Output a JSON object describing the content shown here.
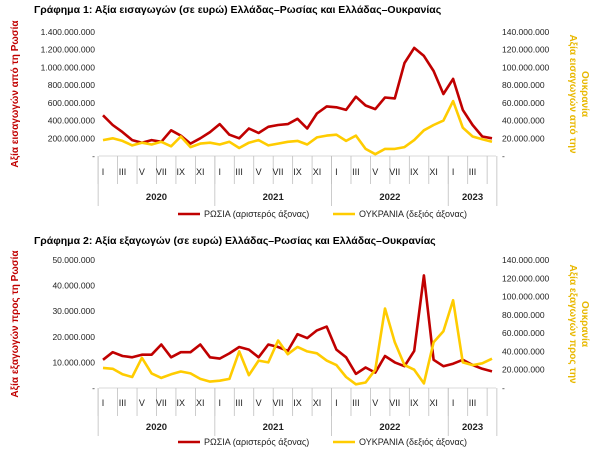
{
  "chart_data": [
    {
      "type": "line",
      "title": "Γράφημα 1: Αξία εισαγωγών (σε ευρώ) Ελλάδας–Ρωσίας και Ελλάδας–Ουκρανίας",
      "ylabel": "Αξία εισαγωγών από τη Ρωσία",
      "y2label": "Αξία εισαγωγών από την Ουκρανία",
      "ylim": [
        0,
        1400000000
      ],
      "y2lim": [
        0,
        140000000
      ],
      "yticks": [
        "-",
        "200.000.000",
        "400.000.000",
        "600.000.000",
        "800.000.000",
        "1.000.000.000",
        "1.200.000.000",
        "1.400.000.000"
      ],
      "y2ticks": [
        "-",
        "20.000.000",
        "40.000.000",
        "60.000.000",
        "80.000.000",
        "100.000.000",
        "120.000.000",
        "140.000.000"
      ],
      "month_labels": [
        "I",
        "III",
        "V",
        "VII",
        "IX",
        "XI",
        "I",
        "III",
        "V",
        "VII",
        "IX",
        "XI",
        "I",
        "III",
        "V",
        "VII",
        "IX",
        "XI",
        "I",
        "III"
      ],
      "year_labels": [
        "2020",
        "2021",
        "2022",
        "2023"
      ],
      "legend_position": "bottom",
      "series": [
        {
          "name": "ΡΩΣΙΑ (αριστερός άξονας)",
          "axis": "left",
          "color": "#c00000",
          "values": [
            460000000,
            350000000,
            270000000,
            180000000,
            150000000,
            180000000,
            160000000,
            290000000,
            230000000,
            140000000,
            200000000,
            270000000,
            360000000,
            240000000,
            200000000,
            310000000,
            260000000,
            330000000,
            350000000,
            360000000,
            420000000,
            310000000,
            480000000,
            560000000,
            550000000,
            520000000,
            670000000,
            570000000,
            530000000,
            660000000,
            650000000,
            1050000000,
            1220000000,
            1130000000,
            960000000,
            700000000,
            870000000,
            520000000,
            350000000,
            220000000,
            200000000
          ]
        },
        {
          "name": "ΟΥΚΡΑΝΙΑ (δεξιός άξονας)",
          "axis": "right",
          "color": "#ffcc00",
          "values": [
            18000000,
            20000000,
            17000000,
            12000000,
            15000000,
            13000000,
            16000000,
            11000000,
            22000000,
            10000000,
            14000000,
            15000000,
            13000000,
            16000000,
            9000000,
            15000000,
            18000000,
            12000000,
            14000000,
            16000000,
            17000000,
            13000000,
            21000000,
            23000000,
            24000000,
            17000000,
            23000000,
            8000000,
            2000000,
            8000000,
            8000000,
            10000000,
            18000000,
            29000000,
            35000000,
            40000000,
            62000000,
            32000000,
            22000000,
            19000000,
            16000000
          ]
        }
      ]
    },
    {
      "type": "line",
      "title": "Γράφημα 2: Αξία εξαγωγών (σε ευρώ) Ελλάδας–Ρωσίας και Ελλάδας–Ουκρανίας",
      "ylabel": "Αξία εξαγωγών προς τη Ρωσία",
      "y2label": "Αξία εξαγωγών προς την Ουκρανία",
      "ylim": [
        0,
        50000000
      ],
      "y2lim": [
        0,
        140000000
      ],
      "yticks": [
        "-",
        "10.000.000",
        "20.000.000",
        "30.000.000",
        "40.000.000",
        "50.000.000"
      ],
      "y2ticks": [
        "-",
        "20.000.000",
        "40.000.000",
        "60.000.000",
        "80.000.000",
        "100.000.000",
        "120.000.000",
        "140.000.000"
      ],
      "month_labels": [
        "I",
        "III",
        "V",
        "VII",
        "IX",
        "XI",
        "I",
        "III",
        "V",
        "VII",
        "IX",
        "XI",
        "I",
        "III",
        "V",
        "VII",
        "IX",
        "XI",
        "I",
        "III"
      ],
      "year_labels": [
        "2020",
        "2021",
        "2022",
        "2023"
      ],
      "legend_position": "bottom",
      "series": [
        {
          "name": "ΡΩΣΙΑ (αριστερός άξονας)",
          "axis": "left",
          "color": "#c00000",
          "values": [
            11000000,
            14000000,
            12500000,
            12000000,
            13000000,
            13000000,
            17000000,
            12000000,
            14000000,
            14000000,
            17000000,
            12000000,
            11500000,
            13500000,
            16000000,
            15000000,
            12000000,
            17000000,
            16000000,
            14500000,
            21000000,
            19500000,
            22500000,
            24000000,
            15000000,
            12000000,
            5500000,
            8000000,
            6000000,
            12500000,
            10000000,
            8500000,
            14500000,
            44000000,
            11000000,
            8500000,
            9500000,
            11000000,
            9000000,
            7500000,
            6500000
          ]
        },
        {
          "name": "ΟΥΚΡΑΝΙΑ (δεξιός άξονας)",
          "axis": "right",
          "color": "#ffcc00",
          "values": [
            22000000,
            21000000,
            15000000,
            12000000,
            33000000,
            16000000,
            11000000,
            15000000,
            18000000,
            16000000,
            10000000,
            7000000,
            8000000,
            10000000,
            40000000,
            14000000,
            30000000,
            28000000,
            52000000,
            37000000,
            45000000,
            40000000,
            38000000,
            30000000,
            25000000,
            12000000,
            4000000,
            6000000,
            20000000,
            87000000,
            50000000,
            25000000,
            20000000,
            5000000,
            50000000,
            62000000,
            96000000,
            28000000,
            25000000,
            27000000,
            32000000
          ]
        }
      ]
    }
  ]
}
